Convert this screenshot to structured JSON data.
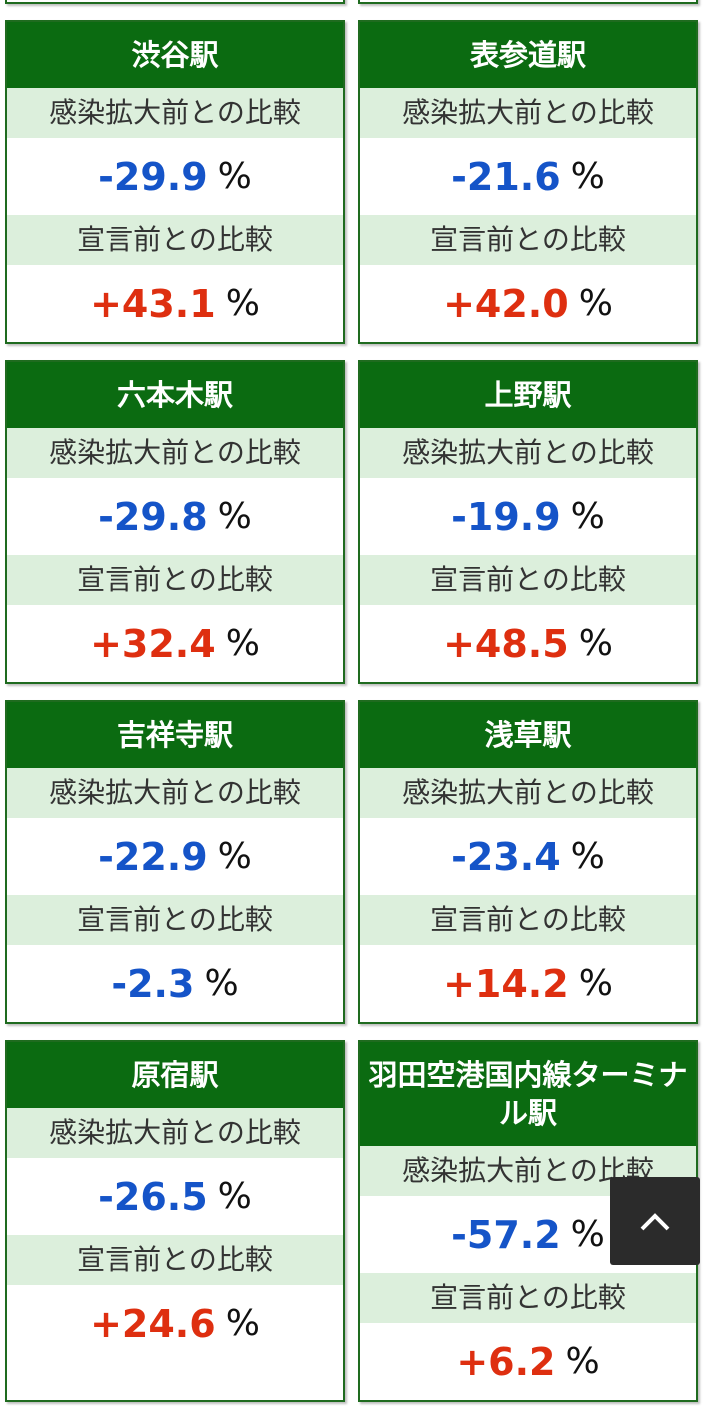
{
  "labels": {
    "before": "感染拡大前との比較",
    "declaration": "宣言前との比較"
  },
  "unit": "%",
  "cards": [
    {
      "name": "渋谷駅",
      "before": "-29.9",
      "declaration": "+43.1"
    },
    {
      "name": "表参道駅",
      "before": "-21.6",
      "declaration": "+42.0"
    },
    {
      "name": "六本木駅",
      "before": "-29.8",
      "declaration": "+32.4"
    },
    {
      "name": "上野駅",
      "before": "-19.9",
      "declaration": "+48.5"
    },
    {
      "name": "吉祥寺駅",
      "before": "-22.9",
      "declaration": "-2.3"
    },
    {
      "name": "浅草駅",
      "before": "-23.4",
      "declaration": "+14.2"
    },
    {
      "name": "原宿駅",
      "before": "-26.5",
      "declaration": "+24.6"
    },
    {
      "name": "羽田空港国内線ターミナル駅",
      "before": "-57.2",
      "declaration": "+6.2"
    }
  ]
}
